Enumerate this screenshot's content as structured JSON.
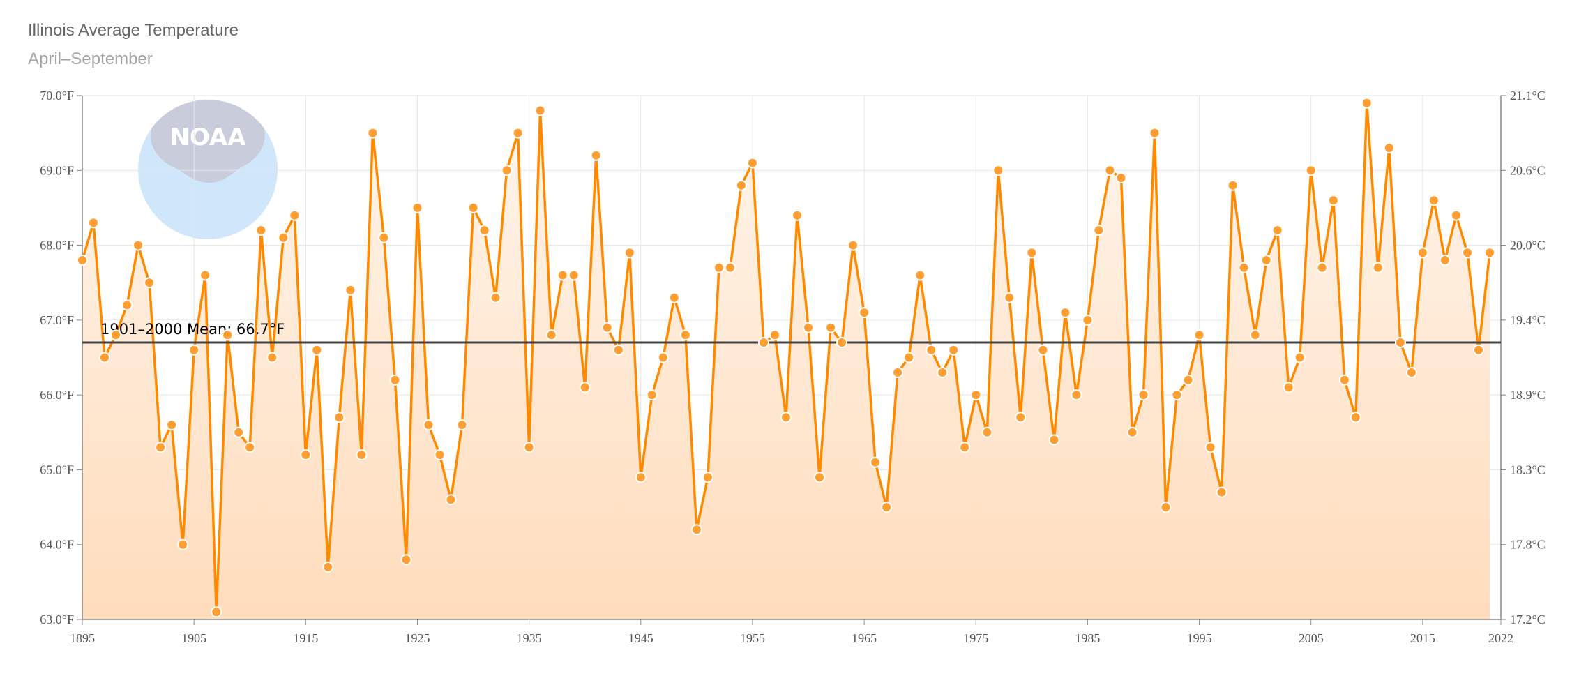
{
  "title": "Illinois Average Temperature",
  "subtitle": "April–September",
  "logo": {
    "text": "NOAA",
    "colors": {
      "top": "#c8ccdb",
      "bottom": "#cfe6fb"
    }
  },
  "colors": {
    "line": "#ff8a00",
    "point": "#ff9f33",
    "area_top": "#fff5ec",
    "area_bottom": "#ffdcbc",
    "mean": "#444444",
    "grid": "#e6e6e6"
  },
  "chart_data": {
    "type": "line",
    "title": "Illinois Average Temperature",
    "subtitle": "April–September",
    "xlim": [
      1895,
      2022
    ],
    "ylim": [
      63.0,
      70.0
    ],
    "x_ticks": [
      "1895",
      "1905",
      "1915",
      "1925",
      "1935",
      "1945",
      "1955",
      "1965",
      "1975",
      "1985",
      "1995",
      "2005",
      "2015",
      "2022"
    ],
    "y_ticks_left": [
      "63.0°F",
      "64.0°F",
      "65.0°F",
      "66.0°F",
      "67.0°F",
      "68.0°F",
      "69.0°F",
      "70.0°F"
    ],
    "y_ticks_right": [
      "17.2°C",
      "17.8°C",
      "18.3°C",
      "18.9°C",
      "19.4°C",
      "20.0°C",
      "20.6°C",
      "21.1°C"
    ],
    "mean": {
      "value": 66.7,
      "label": "1901–2000 Mean: 66.7°F"
    },
    "grid": true,
    "series": [
      {
        "x": [
          1895,
          1896,
          1897,
          1898,
          1899,
          1900,
          1901,
          1902,
          1903,
          1904,
          1905,
          1906,
          1907,
          1908,
          1909,
          1910,
          1911,
          1912,
          1913,
          1914,
          1915,
          1916,
          1917,
          1918,
          1919,
          1920,
          1921,
          1922,
          1923,
          1924,
          1925,
          1926,
          1927,
          1928,
          1929,
          1930,
          1931,
          1932,
          1933,
          1934,
          1935,
          1936,
          1937,
          1938,
          1939,
          1940,
          1941,
          1942,
          1943,
          1944,
          1945,
          1946,
          1947,
          1948,
          1949,
          1950,
          1951,
          1952,
          1953,
          1954,
          1955,
          1956,
          1957,
          1958,
          1959,
          1960,
          1961,
          1962,
          1963,
          1964,
          1965,
          1966,
          1967,
          1968,
          1969,
          1970,
          1971,
          1972,
          1973,
          1974,
          1975,
          1976,
          1977,
          1978,
          1979,
          1980,
          1981,
          1982,
          1983,
          1984,
          1985,
          1986,
          1987,
          1988,
          1989,
          1990,
          1991,
          1992,
          1993,
          1994,
          1995,
          1996,
          1997,
          1998,
          1999,
          2000,
          2001,
          2002,
          2003,
          2004,
          2005,
          2006,
          2007,
          2008,
          2009,
          2010,
          2011,
          2012,
          2013,
          2014,
          2015,
          2016,
          2017,
          2018,
          2019,
          2020,
          2021
        ],
        "values": [
          67.8,
          68.3,
          66.5,
          66.8,
          67.2,
          68.0,
          67.5,
          65.3,
          65.6,
          64.0,
          66.6,
          67.6,
          63.1,
          66.8,
          65.5,
          65.3,
          68.2,
          66.5,
          68.1,
          68.4,
          65.2,
          66.6,
          63.7,
          65.7,
          67.4,
          65.2,
          69.5,
          68.1,
          66.2,
          63.8,
          68.5,
          65.6,
          65.2,
          64.6,
          65.6,
          68.5,
          68.2,
          67.3,
          69.0,
          69.5,
          65.3,
          69.8,
          66.8,
          67.6,
          67.6,
          66.1,
          69.2,
          66.9,
          66.6,
          67.9,
          64.9,
          66.0,
          66.5,
          67.3,
          66.8,
          64.2,
          64.9,
          67.7,
          67.7,
          68.8,
          69.1,
          66.7,
          66.8,
          65.7,
          68.4,
          66.9,
          64.9,
          66.9,
          66.7,
          68.0,
          67.1,
          65.1,
          64.5,
          66.3,
          66.5,
          67.6,
          66.6,
          66.3,
          66.6,
          65.3,
          66.0,
          65.5,
          69.0,
          67.3,
          65.7,
          67.9,
          66.6,
          65.4,
          67.1,
          66.0,
          67.0,
          68.2,
          69.0,
          68.9,
          65.5,
          66.0,
          69.5,
          64.5,
          66.0,
          66.2,
          66.8,
          65.3,
          64.7,
          68.8,
          67.7,
          66.8,
          67.8,
          68.2,
          66.1,
          66.5,
          69.0,
          67.7,
          68.6,
          66.2,
          65.7,
          69.9,
          67.7,
          69.3,
          66.7,
          66.3,
          67.9,
          68.6,
          67.8,
          68.4,
          67.9,
          66.6,
          67.9
        ]
      }
    ]
  }
}
